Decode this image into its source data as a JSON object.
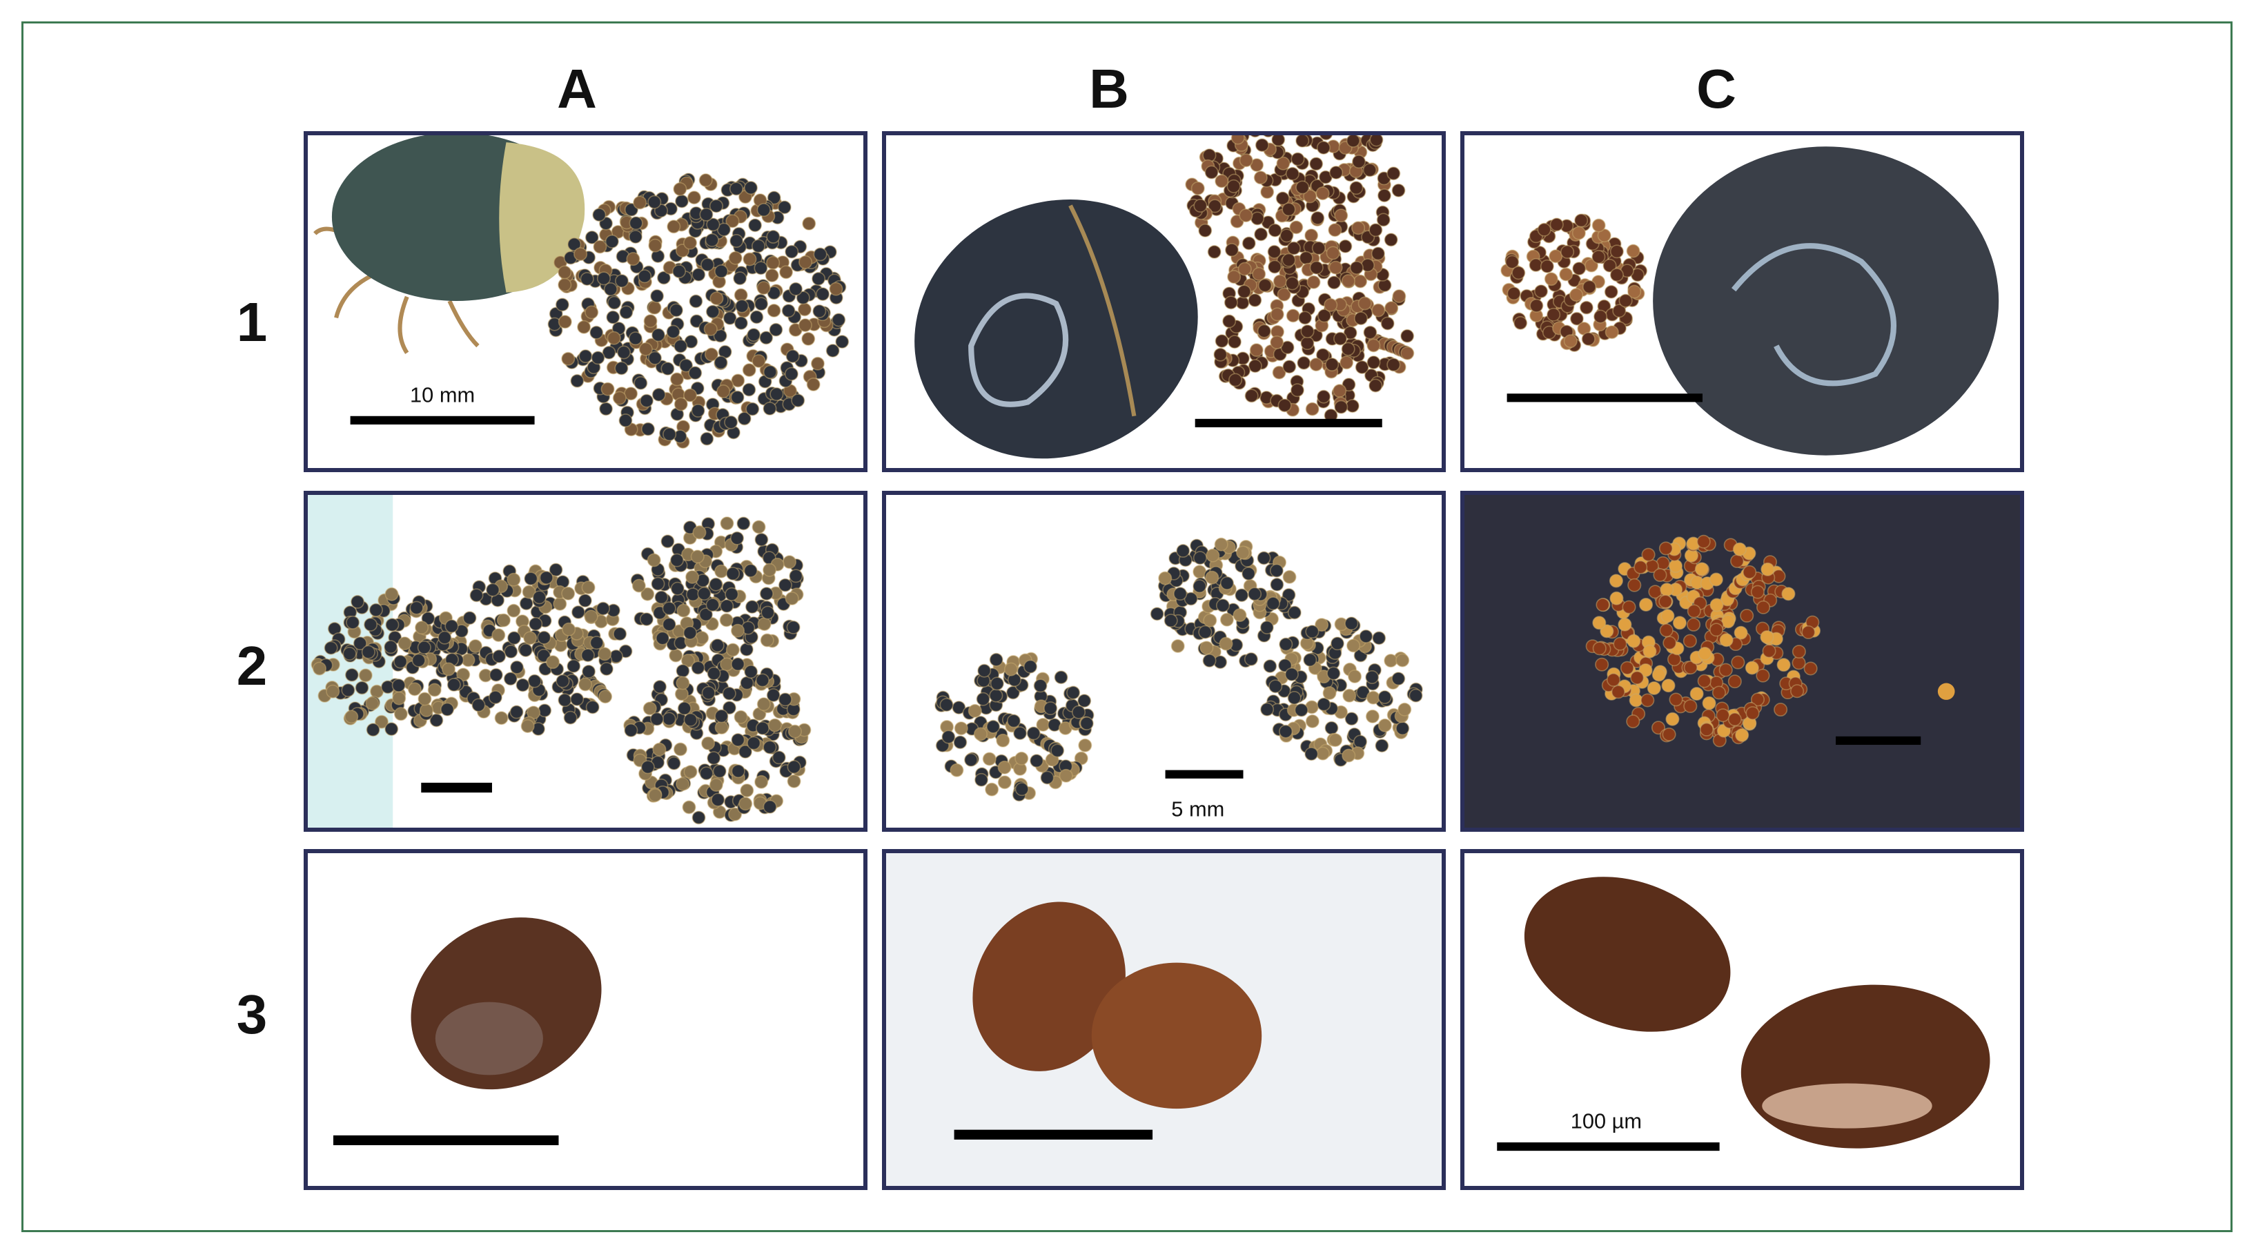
{
  "figure": {
    "column_labels": [
      "A",
      "B",
      "C"
    ],
    "row_labels": [
      "1",
      "2",
      "3"
    ],
    "scale_bar_labels": {
      "A1": "10 mm",
      "B2": "5 mm",
      "C3": "100 µm"
    },
    "colors": {
      "frame": "#3d7a52",
      "panel_border": "#2b2f5a",
      "dark_egg": "#2c3038",
      "brown_egg": "#6b3a1c",
      "orange_egg": "#b8621f",
      "dark_background": "#2e2f3d"
    }
  }
}
